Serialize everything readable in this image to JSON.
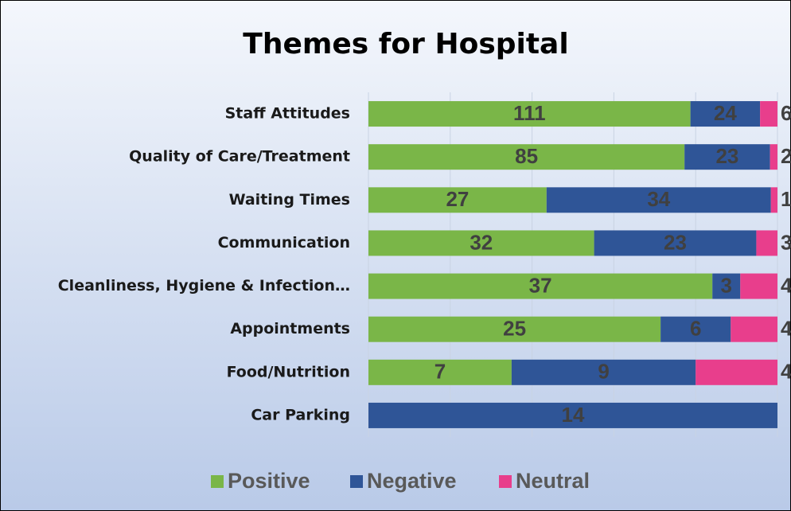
{
  "chart_data": {
    "type": "stacked_percent_bar_horizontal",
    "title": "Themes for Hospital",
    "categories": [
      "Staff Attitudes",
      "Quality of Care/Treatment",
      "Waiting Times",
      "Communication",
      "Cleanliness, Hygiene & Infection…",
      "Appointments",
      "Food/Nutrition",
      "Car Parking"
    ],
    "series": [
      {
        "name": "Positive",
        "color": "#7ab648",
        "values": [
          111,
          85,
          27,
          32,
          37,
          25,
          7,
          0
        ]
      },
      {
        "name": "Negative",
        "color": "#2f5597",
        "values": [
          24,
          23,
          34,
          23,
          3,
          6,
          9,
          14
        ]
      },
      {
        "name": "Neutral",
        "color": "#e83e8c",
        "values": [
          6,
          2,
          1,
          3,
          4,
          4,
          4,
          0
        ]
      }
    ],
    "xlim": [
      0,
      100
    ],
    "xticks": [
      0,
      20,
      40,
      60,
      80,
      100
    ],
    "grid": true,
    "legend": "bottom"
  }
}
